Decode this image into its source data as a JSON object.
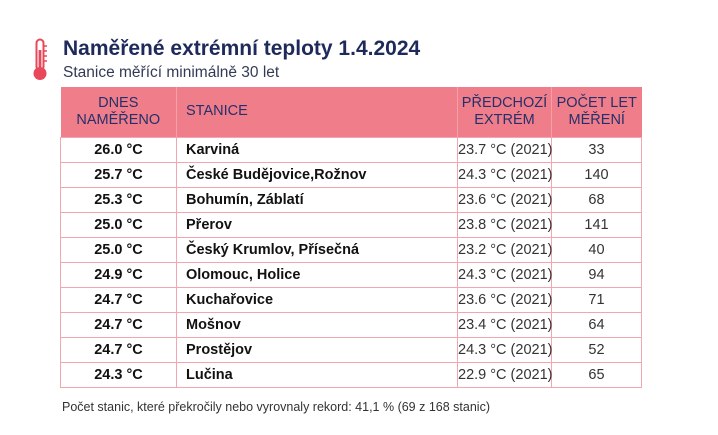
{
  "title": "Naměřené extrémní teploty 1.4.2024",
  "subtitle": "Stanice měřící minimálně 30 let",
  "icon": "thermometer-icon",
  "colors": {
    "header_bg": "#f07d8a",
    "border": "#f2a7ae",
    "title": "#1f2a5c",
    "thermometer": "#e8485a"
  },
  "table": {
    "headers": [
      "DNES NAMĚŘENO",
      "STANICE",
      "PŘEDCHOZÍ EXTRÉM",
      "POČET LET MĚŘENÍ"
    ],
    "header_lines": [
      [
        "DNES",
        "NAMĚŘENO"
      ],
      [
        "STANICE"
      ],
      [
        "PŘEDCHOZÍ",
        "EXTRÉM"
      ],
      [
        "POČET LET",
        "MĚŘENÍ"
      ]
    ],
    "rows": [
      {
        "today": "26.0 °C",
        "station": "Karviná",
        "previous": "23.7 °C (2021)",
        "years": "33"
      },
      {
        "today": "25.7 °C",
        "station": "České Budějovice,Rožnov",
        "previous": "24.3 °C (2021)",
        "years": "140"
      },
      {
        "today": "25.3 °C",
        "station": "Bohumín, Záblatí",
        "previous": "23.6 °C (2021)",
        "years": "68"
      },
      {
        "today": "25.0 °C",
        "station": "Přerov",
        "previous": "23.8 °C (2021)",
        "years": "141"
      },
      {
        "today": "25.0 °C",
        "station": "Český Krumlov, Přísečná",
        "previous": "23.2 °C (2021)",
        "years": "40"
      },
      {
        "today": "24.9 °C",
        "station": "Olomouc, Holice",
        "previous": "24.3 °C (2021)",
        "years": "94"
      },
      {
        "today": "24.7 °C",
        "station": "Kuchařovice",
        "previous": "23.6 °C (2021)",
        "years": "71"
      },
      {
        "today": "24.7 °C",
        "station": "Mošnov",
        "previous": "23.4 °C (2021)",
        "years": "64"
      },
      {
        "today": "24.7 °C",
        "station": "Prostějov",
        "previous": "24.3 °C (2021)",
        "years": "52"
      },
      {
        "today": "24.3 °C",
        "station": "Lučina",
        "previous": "22.9 °C (2021)",
        "years": "65"
      }
    ]
  },
  "footer": "Počet stanic, které překročily nebo vyrovnaly rekord: 41,1 % (69 z 168 stanic)"
}
